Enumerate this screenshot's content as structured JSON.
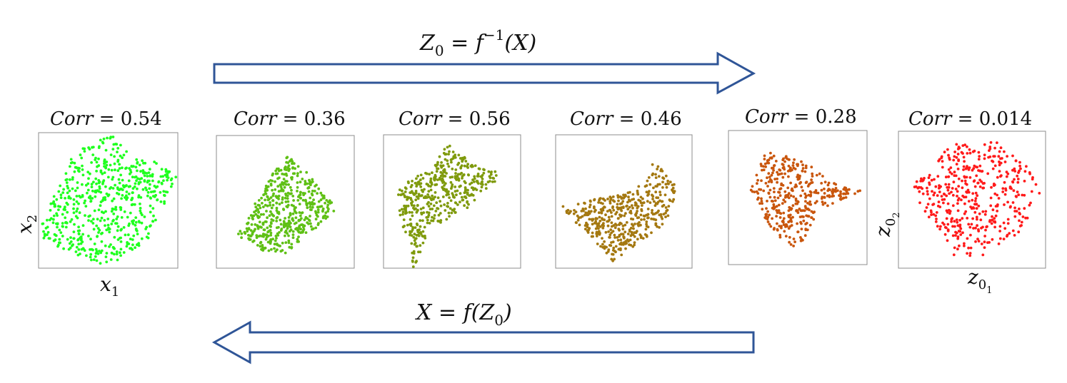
{
  "forward_label": {
    "lhs": "Z",
    "sub": "0",
    "eq": " = ",
    "fn": "f",
    "sup": "−1",
    "arg": "(X)"
  },
  "inverse_label": {
    "lhs": "X",
    "eq": " = ",
    "fn": "f",
    "arg_open": "(Z",
    "sub": "0",
    "arg_close": ")"
  },
  "corr_prefix": "Corr",
  "corr_eq": " = ",
  "panels": [
    {
      "corr": "0.54",
      "color": "#1fff1f"
    },
    {
      "corr": "0.36",
      "color": "#5fc015"
    },
    {
      "corr": "0.56",
      "color": "#7f9a0c"
    },
    {
      "corr": "0.46",
      "color": "#a47810"
    },
    {
      "corr": "0.28",
      "color": "#c9560d"
    },
    {
      "corr": "0.014",
      "color": "#ff1a1a"
    }
  ],
  "axes": {
    "x_left": {
      "base": "x",
      "sub": "1"
    },
    "y_left": {
      "base": "x",
      "sub": "2"
    },
    "x_right": {
      "base": "z",
      "sub": "0",
      "subsub": "1"
    },
    "y_right": {
      "base": "z",
      "sub": "0",
      "subsub": "2"
    }
  },
  "colors": {
    "arrow_stroke": "#2f5597",
    "box_stroke": "#8c8c8c"
  }
}
